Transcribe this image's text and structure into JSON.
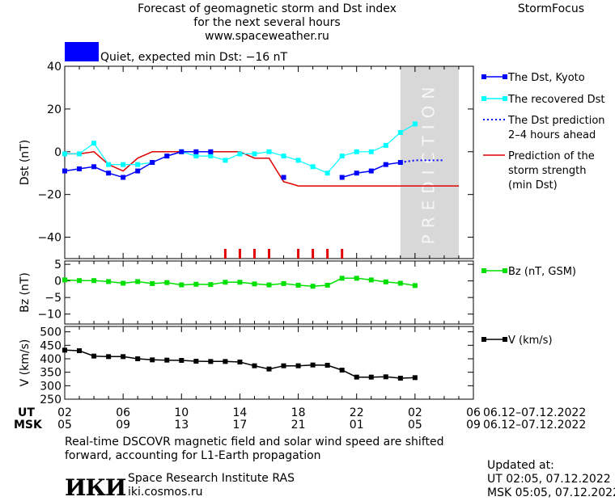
{
  "header": {
    "title_line1": "Forecast of geomagnetic storm and Dst index",
    "title_line2": "for the next several hours",
    "title_line3": "www.spaceweather.ru",
    "brand": "StormFocus",
    "quiet_label": "Quiet, expected min Dst: −16 nT"
  },
  "colors": {
    "dst_kyoto": "#0000ff",
    "recovered_dst": "#00ffff",
    "dst_prediction": "#0000ff",
    "storm_strength": "#e00000",
    "bz": "#00e000",
    "speed": "#000000",
    "prediction_zone": "#d8d8d8",
    "quiet_indicator": "#0000ff"
  },
  "chart_data": [
    {
      "type": "line",
      "ylabel": "Dst (nT)",
      "ylim": [
        -50,
        40
      ],
      "yticks": [
        -40,
        -20,
        0,
        20,
        40
      ],
      "x_unit": "hours from 02 UT 06.12",
      "xlim": [
        0,
        28
      ],
      "prediction_zone": {
        "from": 23,
        "to": 27,
        "label": "PREDICTION"
      },
      "series": [
        {
          "name": "The Dst, Kyoto",
          "style": "line-square",
          "x": [
            0,
            1,
            2,
            3,
            4,
            5,
            6,
            7,
            8,
            9,
            10,
            11,
            12,
            13,
            14,
            15,
            16,
            17,
            18,
            19,
            20,
            21,
            22,
            23
          ],
          "y": [
            -9,
            -8,
            -7,
            -10,
            -12,
            -9,
            -5,
            -2,
            0,
            0,
            0,
            null,
            null,
            null,
            null,
            -12,
            null,
            null,
            null,
            -12,
            -10,
            -9,
            -6,
            -5
          ]
        },
        {
          "name": "The recovered Dst",
          "style": "line-square",
          "x": [
            0,
            1,
            2,
            3,
            4,
            5,
            6,
            7,
            8,
            9,
            10,
            11,
            12,
            13,
            14,
            15,
            16,
            17,
            18,
            19,
            20,
            21,
            22,
            23,
            24
          ],
          "y": [
            -1,
            -1,
            4,
            -6,
            -6,
            -6,
            -5,
            -2,
            0,
            -2,
            -2,
            -4,
            -1,
            -1,
            0,
            -2,
            -4,
            -7,
            -10,
            -2,
            0,
            0,
            3,
            9,
            13
          ]
        },
        {
          "name": "The Dst prediction",
          "style": "dotted",
          "x": [
            23,
            24,
            25,
            26
          ],
          "y": [
            -5,
            -4,
            -4,
            -4
          ]
        },
        {
          "name": "Prediction of the storm strength (min Dst)",
          "style": "line",
          "x": [
            0,
            1,
            2,
            3,
            4,
            5,
            6,
            7,
            8,
            9,
            10,
            11,
            12,
            13,
            14,
            15,
            15.5,
            16,
            27
          ],
          "y": [
            -1,
            -1,
            0,
            -6,
            -9,
            -3,
            0,
            0,
            0,
            0,
            0,
            0,
            0,
            -3,
            -3,
            -14,
            -15,
            -16,
            -16
          ]
        }
      ],
      "storm_markers_x": [
        11,
        12,
        13,
        14,
        16,
        17,
        18,
        19
      ],
      "legend": [
        {
          "label_lines": [
            "The Dst, Kyoto"
          ],
          "key": "dst_kyoto"
        },
        {
          "label_lines": [
            "The recovered Dst"
          ],
          "key": "recovered_dst"
        },
        {
          "label_lines": [
            "The Dst prediction",
            "2–4 hours ahead"
          ],
          "key": "dst_prediction"
        },
        {
          "label_lines": [
            "Prediction of the",
            "storm strength",
            "(min Dst)"
          ],
          "key": "storm_strength"
        }
      ]
    },
    {
      "type": "line",
      "ylabel": "Bz (nT)",
      "ylim": [
        -13,
        6
      ],
      "yticks": [
        -10,
        -5,
        0,
        5
      ],
      "legend": "Bz (nT, GSM)",
      "x": [
        0,
        1,
        2,
        3,
        4,
        5,
        6,
        7,
        8,
        9,
        10,
        11,
        12,
        13,
        14,
        15,
        16,
        17,
        18,
        19,
        20,
        21,
        22,
        23,
        24
      ],
      "y": [
        0.3,
        0.1,
        0.1,
        -0.2,
        -0.7,
        -0.2,
        -0.8,
        -0.5,
        -1.2,
        -1.0,
        -1.1,
        -0.4,
        -0.4,
        -0.9,
        -1.2,
        -0.8,
        -1.3,
        -1.6,
        -1.3,
        0.8,
        0.8,
        0.3,
        -0.3,
        -0.7,
        -1.4
      ]
    },
    {
      "type": "line",
      "ylabel": "V (km/s)",
      "ylim": [
        250,
        520
      ],
      "yticks": [
        250,
        300,
        350,
        400,
        450,
        500
      ],
      "legend": "V (km/s)",
      "x": [
        0,
        1,
        2,
        3,
        4,
        5,
        6,
        7,
        8,
        9,
        10,
        11,
        12,
        13,
        14,
        15,
        16,
        17,
        18,
        19,
        20,
        21,
        22,
        23,
        24
      ],
      "y": [
        432,
        430,
        410,
        408,
        408,
        400,
        396,
        395,
        394,
        391,
        390,
        390,
        388,
        374,
        362,
        374,
        374,
        377,
        376,
        358,
        332,
        332,
        333,
        328,
        330
      ]
    }
  ],
  "time_axis": {
    "ut_label": "UT",
    "msk_label": "MSK",
    "ut_ticks": [
      "02",
      "06",
      "10",
      "14",
      "18",
      "22",
      "02",
      "06"
    ],
    "msk_ticks": [
      "05",
      "09",
      "13",
      "17",
      "21",
      "01",
      "05",
      "09"
    ],
    "date_range_ut": "06.12–07.12.2022",
    "date_range_msk": "06.12–07.12.2022"
  },
  "footer": {
    "note_line1": "Real-time DSCOVR magnetic field and solar wind speed are shifted",
    "note_line2": "forward, accounting for L1-Earth propagation",
    "logo_text": "ИКИ",
    "institute": "Space Research Institute RAS",
    "website": "iki.cosmos.ru",
    "updated_label": "Updated at:",
    "updated_ut": "UT   02:05, 07.12.2022",
    "updated_msk": "MSK 05:05, 07.12.2022"
  }
}
